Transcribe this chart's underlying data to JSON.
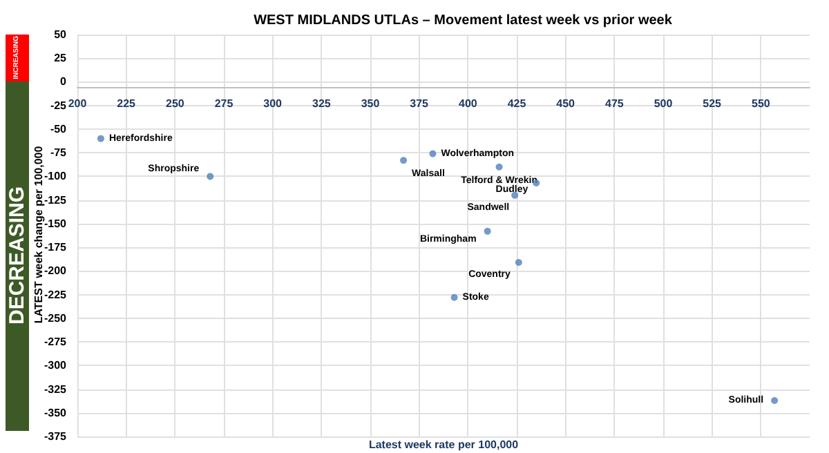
{
  "chart_data": {
    "type": "scatter",
    "title": "WEST MIDLANDS UTLAs – Movement latest week vs prior week",
    "xlabel": "Latest week rate per 100,000",
    "ylabel": "LATEST week change per 100,000",
    "x": [
      212,
      268,
      367,
      382,
      416,
      435,
      424,
      410,
      426,
      393,
      557
    ],
    "values": [
      -60,
      -100,
      -83,
      -76,
      -90,
      -107,
      -120,
      -158,
      -191,
      -228,
      -337
    ],
    "color": "#4f81bd",
    "marker": "circle",
    "annotations": [
      {
        "text": "Herefordshire",
        "x": 212,
        "y": -60
      },
      {
        "text": "Shropshire",
        "x": 268,
        "y": -100
      },
      {
        "text": "Walsall",
        "x": 367,
        "y": -83
      },
      {
        "text": "Wolverhampton",
        "x": 382,
        "y": -76
      },
      {
        "text": "Telford & Wrekin",
        "x": 416,
        "y": -90
      },
      {
        "text": "Dudley",
        "x": 435,
        "y": -107
      },
      {
        "text": "Sandwell",
        "x": 424,
        "y": -120
      },
      {
        "text": "Birmingham",
        "x": 410,
        "y": -158
      },
      {
        "text": "Coventry",
        "x": 426,
        "y": -191
      },
      {
        "text": "Stoke",
        "x": 393,
        "y": -228
      },
      {
        "text": "Solihull",
        "x": 557,
        "y": -337
      },
      "INCREASING",
      "DECREASING"
    ],
    "xlim": [
      200,
      575
    ],
    "xticks": [
      200,
      225,
      250,
      275,
      300,
      325,
      350,
      375,
      400,
      425,
      450,
      475,
      500,
      525,
      550
    ],
    "ylim": [
      -375,
      50
    ],
    "yticks": [
      50,
      25,
      0,
      -25,
      -50,
      -75,
      -100,
      -125,
      -150,
      -175,
      -200,
      -225,
      -250,
      -275,
      -300,
      -325,
      -350,
      -375
    ],
    "grid": true
  }
}
